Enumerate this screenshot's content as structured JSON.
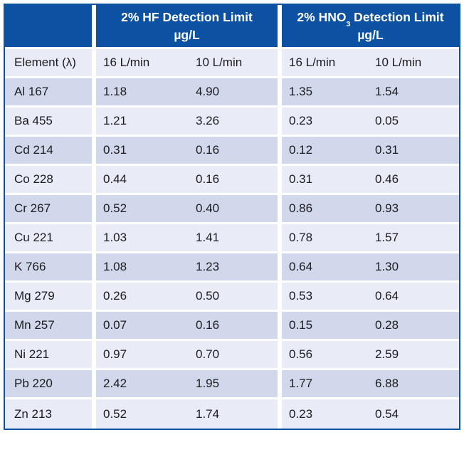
{
  "colors": {
    "header_blue": "#0d52a2",
    "border_blue": "#0d52a2",
    "row_shade_dark": "#d2d8eb",
    "row_shade_light": "#e9ecf6",
    "separator_white": "#ffffff",
    "text_dark": "#1b1b1f",
    "header_text": "#ffffff"
  },
  "table": {
    "group_headers": [
      {
        "prefix": "2% HF Detection Limit",
        "sub": "",
        "suffix": "",
        "unit": "µg/L"
      },
      {
        "prefix": "2% HNO",
        "sub": "3",
        "suffix": " Detection Limit",
        "unit": "µg/L"
      }
    ],
    "column_headers": {
      "element": "Element (λ)",
      "hf_16": "16 L/min",
      "hf_10": "10 L/min",
      "hno3_16": "16 L/min",
      "hno3_10": "10 L/min"
    },
    "rows": [
      {
        "element": "Al 167",
        "values": [
          "1.18",
          "4.90",
          "1.35",
          "1.54"
        ]
      },
      {
        "element": "Ba 455",
        "values": [
          "1.21",
          "3.26",
          "0.23",
          "0.05"
        ]
      },
      {
        "element": "Cd 214",
        "values": [
          "0.31",
          "0.16",
          "0.12",
          "0.31"
        ]
      },
      {
        "element": "Co 228",
        "values": [
          "0.44",
          "0.16",
          "0.31",
          "0.46"
        ]
      },
      {
        "element": "Cr 267",
        "values": [
          "0.52",
          "0.40",
          "0.86",
          "0.93"
        ]
      },
      {
        "element": "Cu 221",
        "values": [
          "1.03",
          "1.41",
          "0.78",
          "1.57"
        ]
      },
      {
        "element": "K 766",
        "values": [
          "1.08",
          "1.23",
          "0.64",
          "1.30"
        ]
      },
      {
        "element": "Mg 279",
        "values": [
          "0.26",
          "0.50",
          "0.53",
          "0.64"
        ]
      },
      {
        "element": "Mn 257",
        "values": [
          "0.07",
          "0.16",
          "0.15",
          "0.28"
        ]
      },
      {
        "element": "Ni 221",
        "values": [
          "0.97",
          "0.70",
          "0.56",
          "2.59"
        ]
      },
      {
        "element": "Pb 220",
        "values": [
          "2.42",
          "1.95",
          "1.77",
          "6.88"
        ]
      },
      {
        "element": "Zn 213",
        "values": [
          "0.52",
          "1.74",
          "0.23",
          "0.54"
        ]
      }
    ]
  }
}
